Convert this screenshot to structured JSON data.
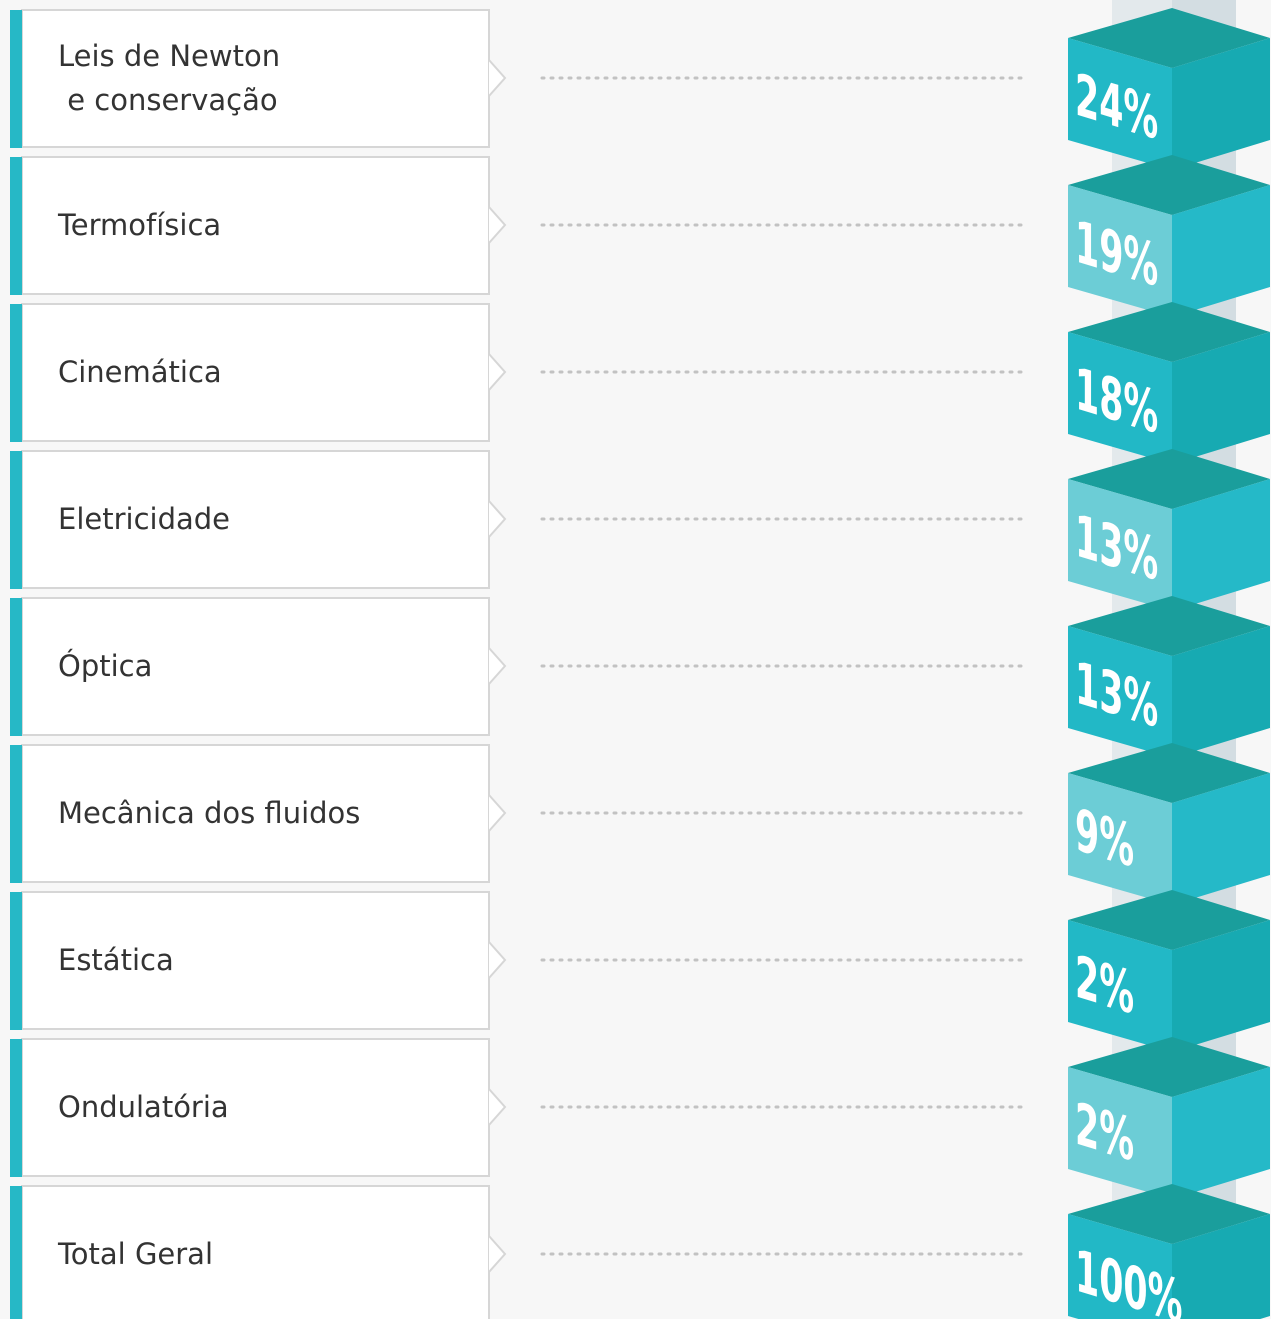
{
  "items": [
    {
      "label": "Leis de Newton\n e conservação",
      "value": "24%"
    },
    {
      "label": "Termofísica",
      "value": "19%"
    },
    {
      "label": "Cinemática",
      "value": "18%"
    },
    {
      "label": "Eletricidade",
      "value": "13%"
    },
    {
      "label": "Óptica",
      "value": "13%"
    },
    {
      "label": "Mecânica dos fluidos",
      "value": "9%"
    },
    {
      "label": "Estática",
      "value": "2%"
    },
    {
      "label": "Ondulatória",
      "value": "2%"
    },
    {
      "label": "Total Geral",
      "value": "100%"
    }
  ]
}
